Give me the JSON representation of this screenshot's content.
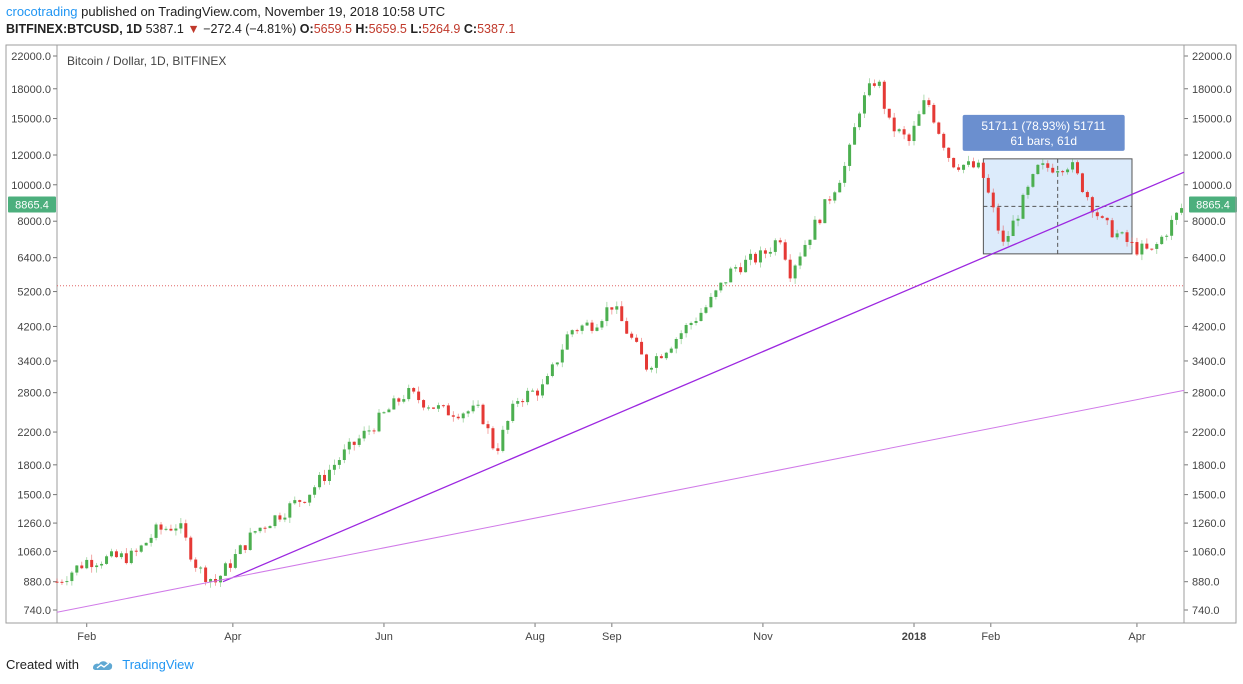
{
  "header": {
    "author": "crocotrading",
    "published_text": "published on TradingView.com, November 19, 2018 10:58 UTC",
    "symbol_line": {
      "symbol": "BITFINEX:BTCUSD, 1D",
      "last": "5387.1",
      "change": "−272.4 (−4.81%)",
      "open_label": "O:",
      "open": "5659.5",
      "high_label": "H:",
      "high": "5659.5",
      "low_label": "L:",
      "low": "5264.9",
      "close_label": "C:",
      "close": "5387.1"
    }
  },
  "footer": {
    "created_with": "Created with",
    "brand": "TradingView"
  },
  "chart_data": {
    "type": "candlestick",
    "title": "Bitcoin / Dollar, 1D, BITFINEX",
    "y_scale": "log",
    "ylim": [
      700,
      23000
    ],
    "y_ticks": [
      740,
      880,
      1060,
      1260,
      1500,
      1800,
      2200,
      2800,
      3400,
      4200,
      5200,
      6400,
      8000,
      10000,
      12000,
      15000,
      18000,
      22000
    ],
    "y_tick_labels": [
      "740.0",
      "880.0",
      "1060.0",
      "1260.0",
      "1500.0",
      "1800.0",
      "2200.0",
      "2800.0",
      "3400.0",
      "4200.0",
      "5200.0",
      "6400.0",
      "8000.0",
      "10000.0",
      "12000.0",
      "15000.0",
      "18000.0",
      "22000.0"
    ],
    "x_tick_labels": [
      "Feb",
      "Apr",
      "Jun",
      "Aug",
      "Sep",
      "Nov",
      "2018",
      "Feb",
      "Apr"
    ],
    "x_ticks": [
      "2017-02-01",
      "2017-04-01",
      "2017-06-01",
      "2017-08-01",
      "2017-09-01",
      "2017-11-01",
      "2018-01-01",
      "2018-02-01",
      "2018-04-01"
    ],
    "x_range": [
      "2017-01-20",
      "2018-04-20"
    ],
    "price_badge": "8865.4",
    "price_badge_value": 8865.4,
    "horizontal_line": 5387.1,
    "series": [
      {
        "name": "",
        "type": "close",
        "x": [
          "2017-01-20",
          "2017-02-01",
          "2017-02-20",
          "2017-03-01",
          "2017-03-10",
          "2017-03-18",
          "2017-03-25",
          "2017-04-10",
          "2017-05-01",
          "2017-05-15",
          "2017-05-25",
          "2017-06-10",
          "2017-06-25",
          "2017-07-10",
          "2017-07-16",
          "2017-07-25",
          "2017-08-05",
          "2017-08-15",
          "2017-08-25",
          "2017-09-01",
          "2017-09-15",
          "2017-09-25",
          "2017-10-10",
          "2017-10-20",
          "2017-11-01",
          "2017-11-08",
          "2017-11-12",
          "2017-11-25",
          "2017-12-05",
          "2017-12-10",
          "2017-12-17",
          "2017-12-22",
          "2017-12-30",
          "2018-01-06",
          "2018-01-16",
          "2018-01-28",
          "2018-02-06",
          "2018-02-20",
          "2018-03-05",
          "2018-03-18",
          "2018-03-31",
          "2018-04-07",
          "2018-04-20"
        ],
        "y": [
          880,
          1000,
          1030,
          1200,
          1250,
          950,
          880,
          1200,
          1500,
          1900,
          2200,
          2800,
          2500,
          2500,
          1950,
          2700,
          2900,
          4100,
          4300,
          4800,
          3300,
          3800,
          4800,
          6000,
          6500,
          7300,
          5900,
          8500,
          11500,
          16000,
          19400,
          14500,
          13000,
          17000,
          11500,
          11000,
          6900,
          11000,
          11400,
          7900,
          6800,
          6600,
          8865.4
        ]
      }
    ],
    "annotations": [
      {
        "type": "trendline",
        "from": [
          "2017-03-28",
          880
        ],
        "to": [
          "2018-04-20",
          10800
        ]
      },
      {
        "type": "trendline",
        "from": [
          "2017-01-20",
          730
        ],
        "to": [
          "2018-04-20",
          2840
        ]
      },
      {
        "type": "range",
        "label_top": "5171.1 (78.93%) 51711",
        "label_bottom": "61 bars, 61d",
        "x_from": "2018-01-29",
        "x_to": "2018-03-30",
        "y_from": 6550,
        "y_to": 11720
      }
    ]
  }
}
